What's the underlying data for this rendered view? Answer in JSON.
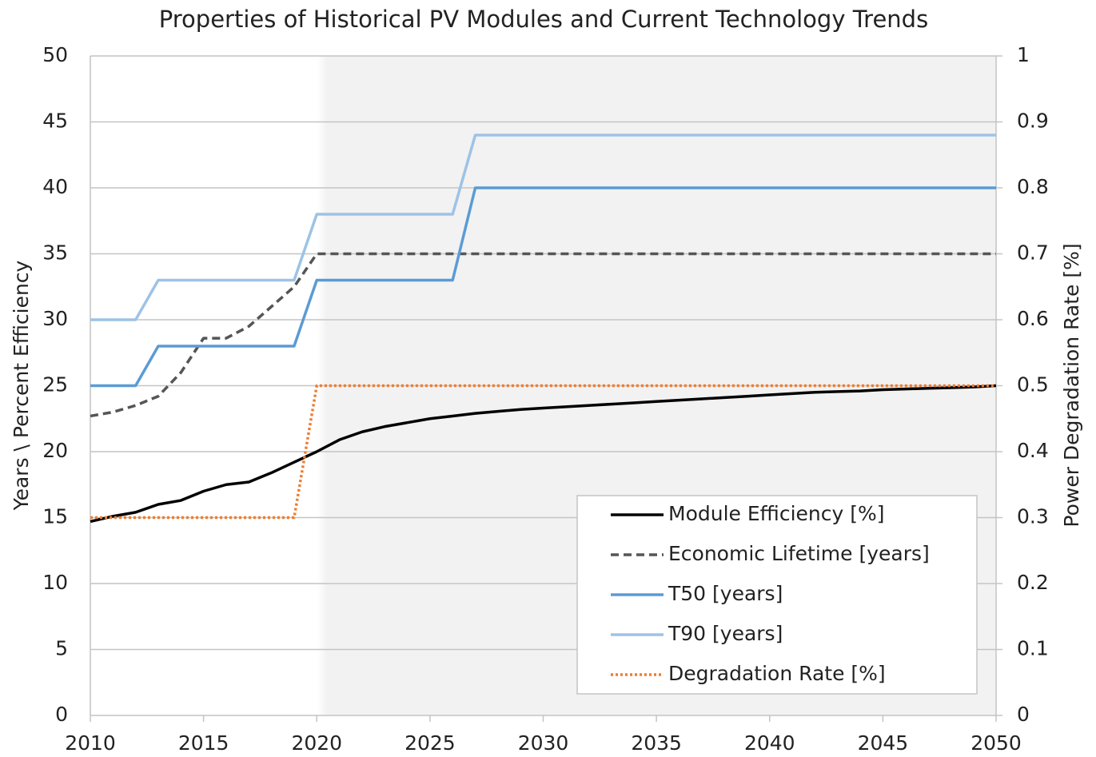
{
  "chart_data": {
    "type": "line",
    "title": "Properties of Historical PV Modules and Current Technology Trends",
    "ylabel": "Years \\ Percent Efficiency",
    "y2label": "Power Degradation Rate [%]",
    "x": [
      2010,
      2011,
      2012,
      2013,
      2014,
      2015,
      2016,
      2017,
      2018,
      2019,
      2020,
      2021,
      2022,
      2023,
      2024,
      2025,
      2026,
      2027,
      2028,
      2029,
      2030,
      2031,
      2032,
      2033,
      2034,
      2035,
      2036,
      2037,
      2038,
      2039,
      2040,
      2041,
      2042,
      2043,
      2044,
      2045,
      2046,
      2047,
      2048,
      2049,
      2050
    ],
    "xlim": [
      2010,
      2050
    ],
    "xticks": [
      2010,
      2015,
      2020,
      2025,
      2030,
      2035,
      2040,
      2045,
      2050
    ],
    "ylim": [
      0,
      50
    ],
    "yticks": [
      0,
      5,
      10,
      15,
      20,
      25,
      30,
      35,
      40,
      45,
      50
    ],
    "y2lim": [
      0,
      1
    ],
    "y2ticks": [
      0,
      0.1,
      0.2,
      0.3,
      0.4,
      0.5,
      0.6,
      0.7,
      0.8,
      0.9,
      1
    ],
    "grid": true,
    "shaded_x": [
      2020,
      2050
    ],
    "shade_color": "#f2f2f2",
    "legend": "lower right",
    "series": [
      {
        "name": "Module Efficiency [%]",
        "color": "#000000",
        "dash": "solid",
        "values": [
          14.7,
          15.1,
          15.4,
          16.0,
          16.3,
          17.0,
          17.5,
          17.7,
          18.4,
          19.2,
          20.0,
          20.9,
          21.5,
          21.9,
          22.2,
          22.5,
          22.7,
          22.9,
          23.05,
          23.2,
          23.3,
          23.4,
          23.5,
          23.6,
          23.7,
          23.8,
          23.9,
          24.0,
          24.1,
          24.2,
          24.3,
          24.4,
          24.5,
          24.55,
          24.6,
          24.7,
          24.75,
          24.8,
          24.85,
          24.9,
          25
        ]
      },
      {
        "name": "Economic Lifetime [years]",
        "color": "#555555",
        "dash": "dashed",
        "values": [
          22.7,
          23.0,
          23.5,
          24.2,
          26.0,
          28.6,
          28.6,
          29.5,
          31.0,
          32.5,
          35,
          35,
          35,
          35,
          35,
          35,
          35,
          35,
          35,
          35,
          35,
          35,
          35,
          35,
          35,
          35,
          35,
          35,
          35,
          35,
          35,
          35,
          35,
          35,
          35,
          35,
          35,
          35,
          35,
          35,
          35
        ]
      },
      {
        "name": "T50 [years]",
        "color": "#5b9bd5",
        "dash": "solid",
        "values": [
          25,
          25,
          25,
          28,
          28,
          28,
          28,
          28,
          28,
          28,
          33,
          33,
          33,
          33,
          33,
          33,
          33,
          40,
          40,
          40,
          40,
          40,
          40,
          40,
          40,
          40,
          40,
          40,
          40,
          40,
          40,
          40,
          40,
          40,
          40,
          40,
          40,
          40,
          40,
          40,
          40
        ]
      },
      {
        "name": "T90 [years]",
        "color": "#9dc3e6",
        "dash": "solid",
        "values": [
          30,
          30,
          30,
          33,
          33,
          33,
          33,
          33,
          33,
          33,
          38,
          38,
          38,
          38,
          38,
          38,
          38,
          44,
          44,
          44,
          44,
          44,
          44,
          44,
          44,
          44,
          44,
          44,
          44,
          44,
          44,
          44,
          44,
          44,
          44,
          44,
          44,
          44,
          44,
          44,
          44
        ]
      },
      {
        "name": "Degradation Rate [%]",
        "color": "#ed7d31",
        "dash": "dotted",
        "axis": "y2",
        "values": [
          0.3,
          0.3,
          0.3,
          0.3,
          0.3,
          0.3,
          0.3,
          0.3,
          0.3,
          0.3,
          0.5,
          0.5,
          0.5,
          0.5,
          0.5,
          0.5,
          0.5,
          0.5,
          0.5,
          0.5,
          0.5,
          0.5,
          0.5,
          0.5,
          0.5,
          0.5,
          0.5,
          0.5,
          0.5,
          0.5,
          0.5,
          0.5,
          0.5,
          0.5,
          0.5,
          0.5,
          0.5,
          0.5,
          0.5,
          0.5,
          0.5
        ]
      }
    ]
  }
}
